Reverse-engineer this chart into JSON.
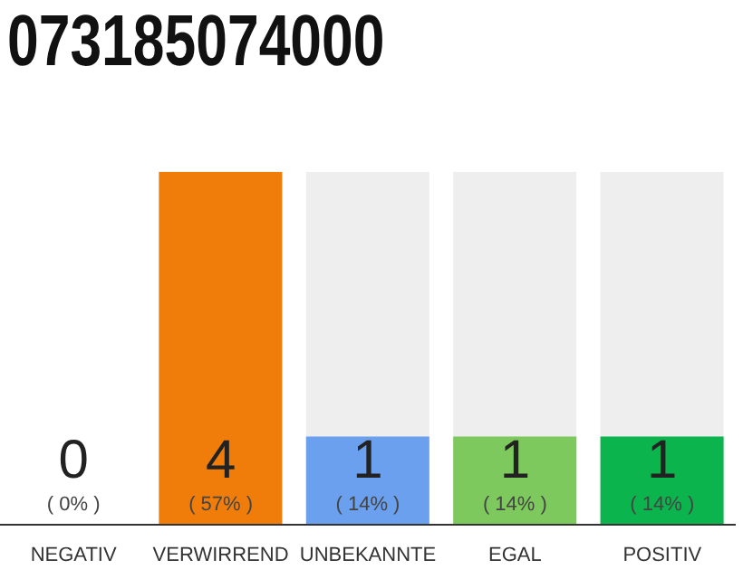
{
  "chart_data": {
    "type": "bar",
    "title": "073185074000",
    "categories": [
      "NEGATIV",
      "VERWIRREND",
      "UNBEKANNTE",
      "EGAL",
      "POSITIV"
    ],
    "values": [
      0,
      4,
      1,
      1,
      1
    ],
    "colors": [
      "#e04040",
      "#f07d0a",
      "#6aa0ee",
      "#7dc95e",
      "#0bb44c"
    ],
    "data_labels": true,
    "annotations": [
      "( 0% )",
      "( 57% )",
      "( 14% )",
      "( 14% )",
      "( 14% )"
    ],
    "grid": false,
    "legend": false
  }
}
